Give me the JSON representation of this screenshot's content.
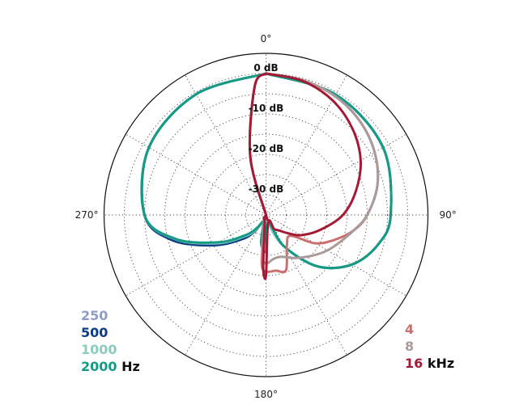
{
  "chart_data": {
    "type": "polar",
    "angle_labels": [
      {
        "angle": 0,
        "text": "0°"
      },
      {
        "angle": 90,
        "text": "90°"
      },
      {
        "angle": 180,
        "text": "180°"
      },
      {
        "angle": 270,
        "text": "270°"
      }
    ],
    "radial_labels": [
      "0 dB",
      "-10 dB",
      "-20 dB",
      "-30 dB"
    ],
    "radial_range_db": [
      -35,
      5
    ],
    "rings_db": [
      0,
      -5,
      -10,
      -15,
      -20,
      -25,
      -30
    ],
    "spoke_step_deg": 30,
    "series": [
      {
        "name": "250",
        "color": "#8f9bc8",
        "level_db": [
          [
            0,
            0
          ],
          [
            30,
            -0.6
          ],
          [
            60,
            -1.6
          ],
          [
            90,
            -4.2
          ],
          [
            105,
            -6.4
          ],
          [
            120,
            -10.5
          ],
          [
            135,
            -17
          ],
          [
            150,
            -26
          ],
          [
            165,
            -33
          ],
          [
            180,
            -35
          ],
          [
            190,
            -35
          ],
          [
            200,
            -34
          ],
          [
            215,
            -30.5
          ],
          [
            225,
            -27
          ],
          [
            240,
            -20.5
          ],
          [
            255,
            -11.5
          ],
          [
            270,
            -5
          ],
          [
            300,
            -1.6
          ],
          [
            330,
            -0.5
          ],
          [
            360,
            0
          ]
        ]
      },
      {
        "name": "500",
        "color": "#0d3d85",
        "level_db": [
          [
            0,
            0
          ],
          [
            30,
            -0.6
          ],
          [
            60,
            -1.6
          ],
          [
            90,
            -4.2
          ],
          [
            105,
            -6.4
          ],
          [
            120,
            -10.5
          ],
          [
            135,
            -17
          ],
          [
            150,
            -26
          ],
          [
            165,
            -33
          ],
          [
            180,
            -35
          ],
          [
            190,
            -35
          ],
          [
            200,
            -34
          ],
          [
            215,
            -30
          ],
          [
            225,
            -26.5
          ],
          [
            240,
            -20
          ],
          [
            255,
            -11
          ],
          [
            270,
            -5
          ],
          [
            300,
            -1.6
          ],
          [
            330,
            -0.5
          ],
          [
            360,
            0
          ]
        ]
      },
      {
        "name": "1000",
        "color": "#8fcbbc",
        "level_db": [
          [
            0,
            0
          ],
          [
            30,
            -0.6
          ],
          [
            60,
            -1.6
          ],
          [
            90,
            -4.2
          ],
          [
            105,
            -6.4
          ],
          [
            120,
            -10.5
          ],
          [
            135,
            -17
          ],
          [
            150,
            -26
          ],
          [
            165,
            -33
          ],
          [
            180,
            -35
          ],
          [
            190,
            -35
          ],
          [
            200,
            -34
          ],
          [
            215,
            -30.5
          ],
          [
            225,
            -27.5
          ],
          [
            240,
            -21
          ],
          [
            255,
            -11.8
          ],
          [
            270,
            -5
          ],
          [
            300,
            -1.6
          ],
          [
            330,
            -0.5
          ],
          [
            360,
            0
          ]
        ]
      },
      {
        "name": "2000",
        "color": "#149b85",
        "level_db": [
          [
            0,
            0
          ],
          [
            30,
            -0.6
          ],
          [
            60,
            -1.6
          ],
          [
            90,
            -4.2
          ],
          [
            105,
            -6.4
          ],
          [
            120,
            -10.5
          ],
          [
            135,
            -17
          ],
          [
            150,
            -26
          ],
          [
            165,
            -33
          ],
          [
            180,
            -26
          ],
          [
            190,
            -28
          ],
          [
            200,
            -33
          ],
          [
            215,
            -31
          ],
          [
            225,
            -28
          ],
          [
            240,
            -21.5
          ],
          [
            255,
            -12
          ],
          [
            270,
            -5
          ],
          [
            300,
            -1.6
          ],
          [
            330,
            -0.5
          ],
          [
            360,
            0
          ]
        ]
      }
    ],
    "series_khz": [
      {
        "name": "4",
        "color": "#cc6f6f",
        "level_db": [
          [
            0,
            0
          ],
          [
            15,
            -0.4
          ],
          [
            30,
            -1
          ],
          [
            45,
            -2.2
          ],
          [
            60,
            -4
          ],
          [
            75,
            -6.5
          ],
          [
            90,
            -10
          ],
          [
            100,
            -13
          ],
          [
            110,
            -17
          ],
          [
            120,
            -21
          ],
          [
            130,
            -27
          ],
          [
            145,
            -26
          ],
          [
            160,
            -20.5
          ],
          [
            170,
            -21
          ],
          [
            180,
            -21
          ],
          [
            185,
            -23
          ],
          [
            195,
            -33
          ],
          [
            210,
            -34
          ],
          [
            240,
            -35
          ],
          [
            270,
            -35
          ],
          [
            300,
            -35
          ],
          [
            330,
            -35
          ],
          [
            345,
            -20
          ],
          [
            355,
            -3
          ],
          [
            360,
            0
          ]
        ]
      },
      {
        "name": "8",
        "color": "#aa9a9a",
        "level_db": [
          [
            0,
            0
          ],
          [
            15,
            -0.4
          ],
          [
            30,
            -1
          ],
          [
            45,
            -2.2
          ],
          [
            60,
            -4
          ],
          [
            75,
            -6.5
          ],
          [
            90,
            -10
          ],
          [
            100,
            -13
          ],
          [
            110,
            -15.5
          ],
          [
            120,
            -17.5
          ],
          [
            130,
            -19.5
          ],
          [
            145,
            -22
          ],
          [
            160,
            -24
          ],
          [
            170,
            -24
          ],
          [
            180,
            -23
          ],
          [
            185,
            -25
          ],
          [
            195,
            -33
          ],
          [
            210,
            -34
          ],
          [
            240,
            -35
          ],
          [
            270,
            -35
          ],
          [
            300,
            -35
          ],
          [
            330,
            -35
          ],
          [
            345,
            -20
          ],
          [
            355,
            -3
          ],
          [
            360,
            0
          ]
        ]
      },
      {
        "name": "16",
        "color": "#a31a35",
        "level_db": [
          [
            0,
            0
          ],
          [
            15,
            -0.6
          ],
          [
            30,
            -2.2
          ],
          [
            45,
            -4.8
          ],
          [
            60,
            -8
          ],
          [
            75,
            -12
          ],
          [
            90,
            -16
          ],
          [
            105,
            -21
          ],
          [
            120,
            -25
          ],
          [
            130,
            -28
          ],
          [
            140,
            -30
          ],
          [
            150,
            -31
          ],
          [
            165,
            -33
          ],
          [
            180,
            -20
          ],
          [
            183,
            -22
          ],
          [
            190,
            -33
          ],
          [
            210,
            -34
          ],
          [
            240,
            -35
          ],
          [
            270,
            -35
          ],
          [
            300,
            -35
          ],
          [
            330,
            -35
          ],
          [
            345,
            -20
          ],
          [
            355,
            -3
          ],
          [
            360,
            0
          ]
        ]
      }
    ],
    "legend_left_unit": "Hz",
    "legend_right_unit": "kHz",
    "legend_placement": [
      "bottom-left",
      "bottom-right"
    ],
    "grid": true
  }
}
